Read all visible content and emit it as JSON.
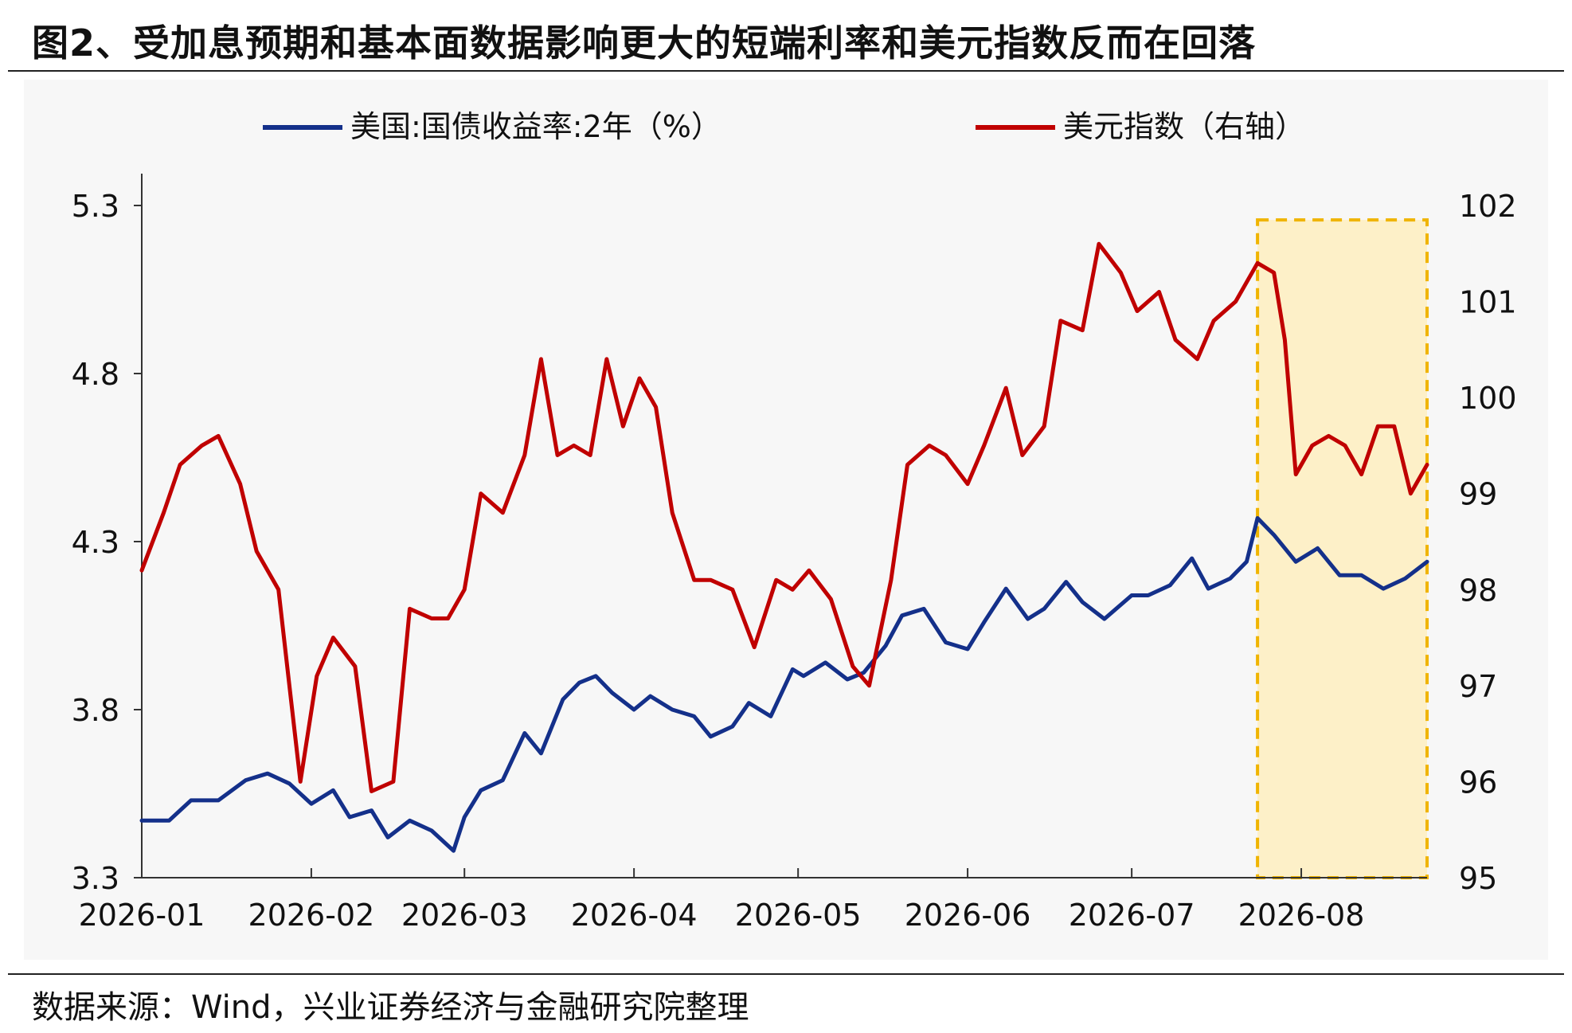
{
  "page": {
    "title": "图2、受加息预期和基本面数据影响更大的短端利率和美元指数反而在回落",
    "source": "数据来源：Wind，兴业证券经济与金融研究院整理"
  },
  "colors": {
    "series_left": "#14308A",
    "series_right": "#C00000",
    "highlight_fill": "#FDF0C8",
    "highlight_border": "#F0B400",
    "plot_bg": "#F7F7F7"
  },
  "chart_data": {
    "type": "line",
    "legend_position": "top",
    "grid": false,
    "x_tick_labels": [
      "2026-01",
      "2026-02",
      "2026-03",
      "2026-04",
      "2026-05",
      "2026-06",
      "2026-07",
      "2026-08"
    ],
    "y_left": {
      "range": [
        3.3,
        5.3
      ],
      "ticks": [
        "3.3",
        "3.8",
        "4.3",
        "4.8",
        "5.3"
      ]
    },
    "y_right": {
      "range": [
        95,
        102
      ],
      "ticks": [
        "95",
        "96",
        "97",
        "98",
        "99",
        "100",
        "101",
        "102"
      ]
    },
    "highlight": {
      "from": "2026-07-24",
      "to": "2026-08-24",
      "y_right_range": [
        95,
        101.85
      ]
    },
    "series": [
      {
        "name": "美国:国债收益率:2年（%）",
        "axis": "left",
        "x": [
          "2026-01-01",
          "2026-01-06",
          "2026-01-10",
          "2026-01-15",
          "2026-01-20",
          "2026-01-24",
          "2026-01-28",
          "2026-02-01",
          "2026-02-05",
          "2026-02-08",
          "2026-02-12",
          "2026-02-15",
          "2026-02-19",
          "2026-02-23",
          "2026-02-27",
          "2026-03-01",
          "2026-03-04",
          "2026-03-08",
          "2026-03-12",
          "2026-03-15",
          "2026-03-19",
          "2026-03-22",
          "2026-03-25",
          "2026-03-28",
          "2026-04-01",
          "2026-04-04",
          "2026-04-08",
          "2026-04-12",
          "2026-04-15",
          "2026-04-19",
          "2026-04-22",
          "2026-04-26",
          "2026-04-30",
          "2026-05-02",
          "2026-05-06",
          "2026-05-10",
          "2026-05-13",
          "2026-05-17",
          "2026-05-20",
          "2026-05-24",
          "2026-05-28",
          "2026-06-01",
          "2026-06-04",
          "2026-06-08",
          "2026-06-12",
          "2026-06-15",
          "2026-06-19",
          "2026-06-22",
          "2026-06-26",
          "2026-07-01",
          "2026-07-04",
          "2026-07-08",
          "2026-07-12",
          "2026-07-15",
          "2026-07-19",
          "2026-07-22",
          "2026-07-24",
          "2026-07-27",
          "2026-07-31",
          "2026-08-04",
          "2026-08-08",
          "2026-08-12",
          "2026-08-16",
          "2026-08-20",
          "2026-08-24"
        ],
        "values": [
          3.47,
          3.47,
          3.53,
          3.53,
          3.59,
          3.61,
          3.58,
          3.52,
          3.56,
          3.48,
          3.5,
          3.42,
          3.47,
          3.44,
          3.38,
          3.48,
          3.56,
          3.59,
          3.73,
          3.67,
          3.83,
          3.88,
          3.9,
          3.85,
          3.8,
          3.84,
          3.8,
          3.78,
          3.72,
          3.75,
          3.82,
          3.78,
          3.92,
          3.9,
          3.94,
          3.89,
          3.91,
          3.99,
          4.08,
          4.1,
          4.0,
          3.98,
          4.06,
          4.16,
          4.07,
          4.1,
          4.18,
          4.12,
          4.07,
          4.14,
          4.14,
          4.17,
          4.25,
          4.16,
          4.19,
          4.24,
          4.37,
          4.32,
          4.24,
          4.28,
          4.2,
          4.2,
          4.16,
          4.19,
          4.24
        ]
      },
      {
        "name": "美元指数（右轴）",
        "axis": "right",
        "x": [
          "2026-01-01",
          "2026-01-05",
          "2026-01-08",
          "2026-01-12",
          "2026-01-15",
          "2026-01-19",
          "2026-01-22",
          "2026-01-26",
          "2026-01-28",
          "2026-01-30",
          "2026-02-02",
          "2026-02-05",
          "2026-02-09",
          "2026-02-12",
          "2026-02-16",
          "2026-02-19",
          "2026-02-23",
          "2026-02-26",
          "2026-03-01",
          "2026-03-04",
          "2026-03-08",
          "2026-03-12",
          "2026-03-15",
          "2026-03-18",
          "2026-03-21",
          "2026-03-24",
          "2026-03-27",
          "2026-03-30",
          "2026-04-02",
          "2026-04-05",
          "2026-04-08",
          "2026-04-12",
          "2026-04-15",
          "2026-04-19",
          "2026-04-23",
          "2026-04-27",
          "2026-04-30",
          "2026-05-03",
          "2026-05-07",
          "2026-05-11",
          "2026-05-14",
          "2026-05-18",
          "2026-05-21",
          "2026-05-25",
          "2026-05-28",
          "2026-06-01",
          "2026-06-04",
          "2026-06-08",
          "2026-06-11",
          "2026-06-15",
          "2026-06-18",
          "2026-06-22",
          "2026-06-25",
          "2026-06-29",
          "2026-07-02",
          "2026-07-06",
          "2026-07-09",
          "2026-07-13",
          "2026-07-16",
          "2026-07-20",
          "2026-07-24",
          "2026-07-27",
          "2026-07-29",
          "2026-07-31",
          "2026-08-03",
          "2026-08-06",
          "2026-08-09",
          "2026-08-12",
          "2026-08-15",
          "2026-08-18",
          "2026-08-21",
          "2026-08-24"
        ],
        "values": [
          98.2,
          98.8,
          99.3,
          99.5,
          99.6,
          99.1,
          98.4,
          98.0,
          97.0,
          96.0,
          97.1,
          97.5,
          97.2,
          95.9,
          96.0,
          97.8,
          97.7,
          97.7,
          98.0,
          99.0,
          98.8,
          99.4,
          100.4,
          99.4,
          99.5,
          99.4,
          100.4,
          99.7,
          100.2,
          99.9,
          98.8,
          98.1,
          98.1,
          98.0,
          97.4,
          98.1,
          98.0,
          98.2,
          97.9,
          97.2,
          97.0,
          98.1,
          99.3,
          99.5,
          99.4,
          99.1,
          99.5,
          100.1,
          99.4,
          99.7,
          100.8,
          100.7,
          101.6,
          101.3,
          100.9,
          101.1,
          100.6,
          100.4,
          100.8,
          101.0,
          101.4,
          101.3,
          100.6,
          99.2,
          99.5,
          99.6,
          99.5,
          99.2,
          99.7,
          99.7,
          99.0,
          99.3
        ]
      }
    ]
  }
}
